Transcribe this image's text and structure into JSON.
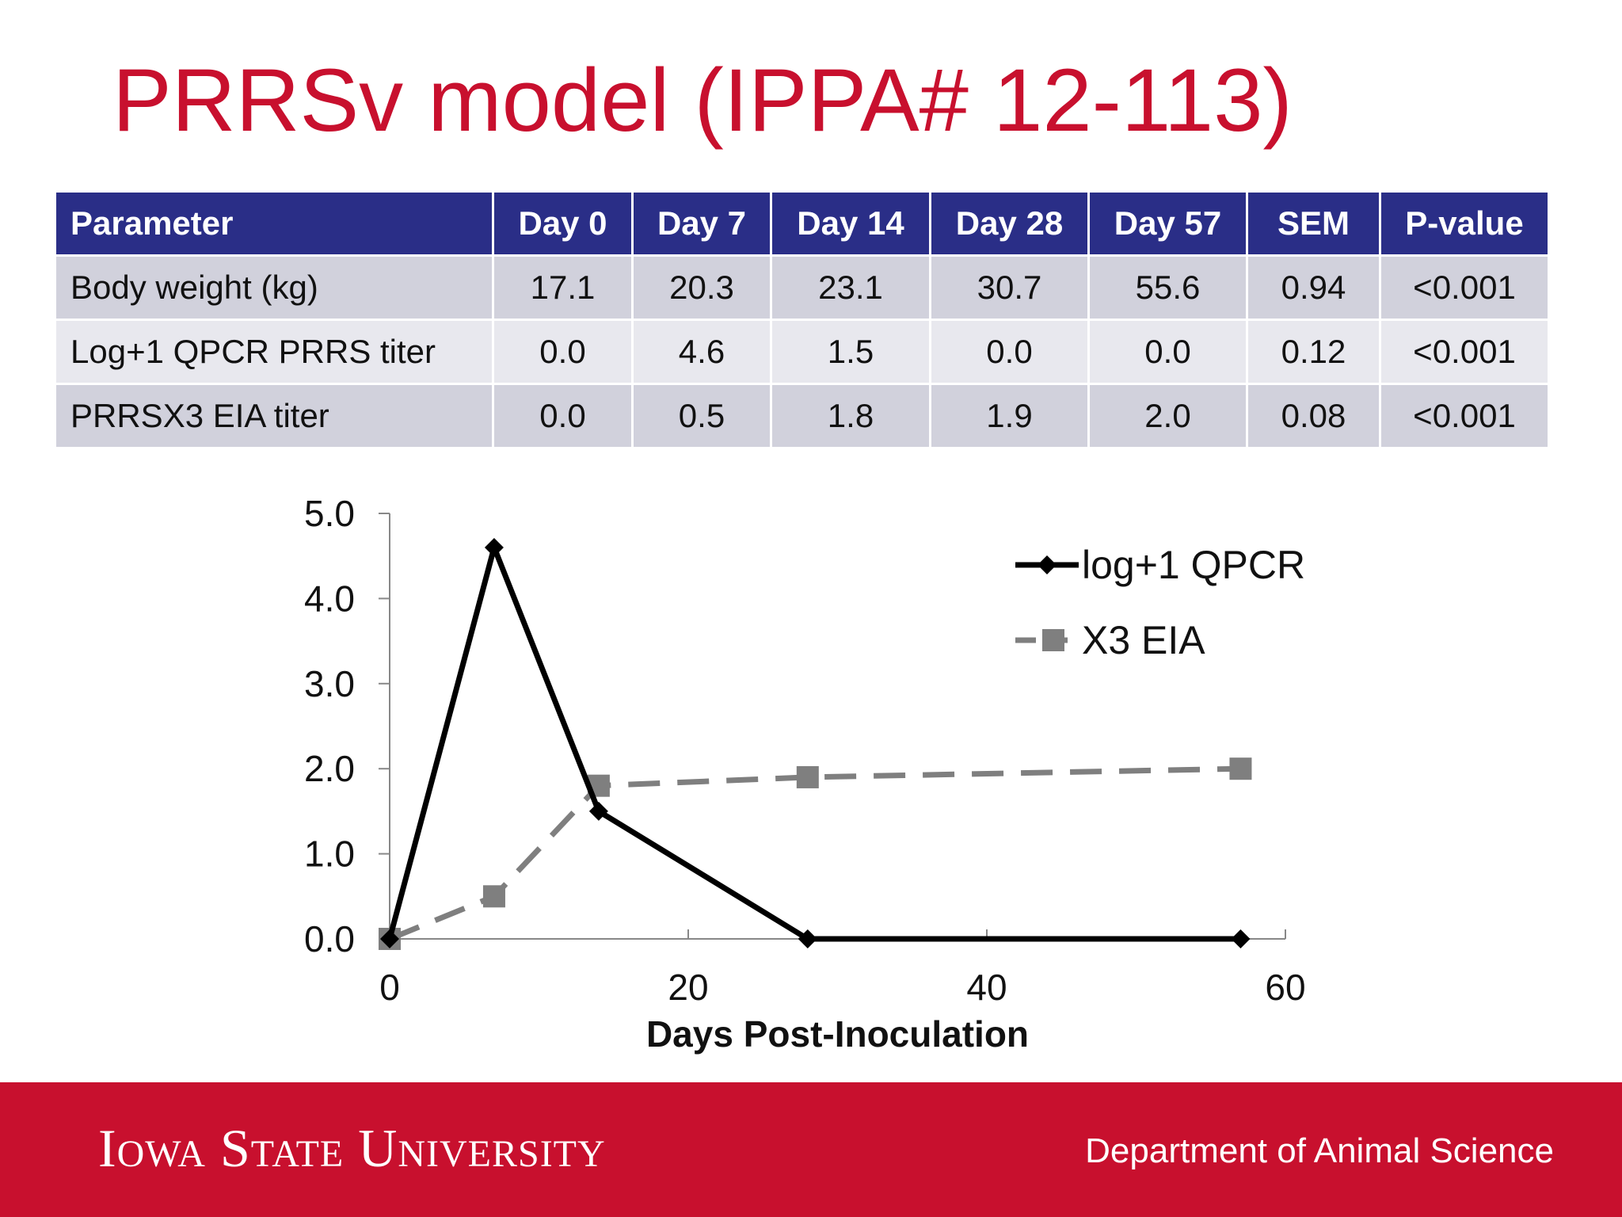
{
  "slide": {
    "title": "PRRSv model (IPPA# 12-113)"
  },
  "table": {
    "headers": [
      "Parameter",
      "Day 0",
      "Day 7",
      "Day 14",
      "Day 28",
      "Day 57",
      "SEM",
      "P-value"
    ],
    "rows": [
      [
        "Body weight (kg)",
        "17.1",
        "20.3",
        "23.1",
        "30.7",
        "55.6",
        "0.94",
        "<0.001"
      ],
      [
        "Log+1 QPCR PRRS titer",
        "0.0",
        "4.6",
        "1.5",
        "0.0",
        "0.0",
        "0.12",
        "<0.001"
      ],
      [
        "PRRSX3 EIA titer",
        "0.0",
        "0.5",
        "1.8",
        "1.9",
        "2.0",
        "0.08",
        "<0.001"
      ]
    ]
  },
  "chart_data": {
    "type": "line",
    "title": "",
    "xlabel": "Days Post-Inoculation",
    "ylabel": "",
    "xlim": [
      0,
      60
    ],
    "ylim": [
      0,
      5
    ],
    "x_ticks": [
      "0",
      "20",
      "40",
      "60"
    ],
    "y_ticks": [
      "0.0",
      "1.0",
      "2.0",
      "3.0",
      "4.0",
      "5.0"
    ],
    "grid": false,
    "legend_position": "top-right",
    "series": [
      {
        "name": "log+1 QPCR",
        "color": "#000000",
        "marker": "diamond",
        "line_style": "solid",
        "x": [
          0,
          7,
          14,
          28,
          57
        ],
        "y": [
          0.0,
          4.6,
          1.5,
          0.0,
          0.0
        ]
      },
      {
        "name": "X3 EIA",
        "color": "#7f7f7f",
        "marker": "square",
        "line_style": "dashed",
        "x": [
          0,
          7,
          14,
          28,
          57
        ],
        "y": [
          0.0,
          0.5,
          1.8,
          1.9,
          2.0
        ]
      }
    ]
  },
  "footer": {
    "university": "Iowa State University",
    "department": "Department of Animal Science"
  }
}
